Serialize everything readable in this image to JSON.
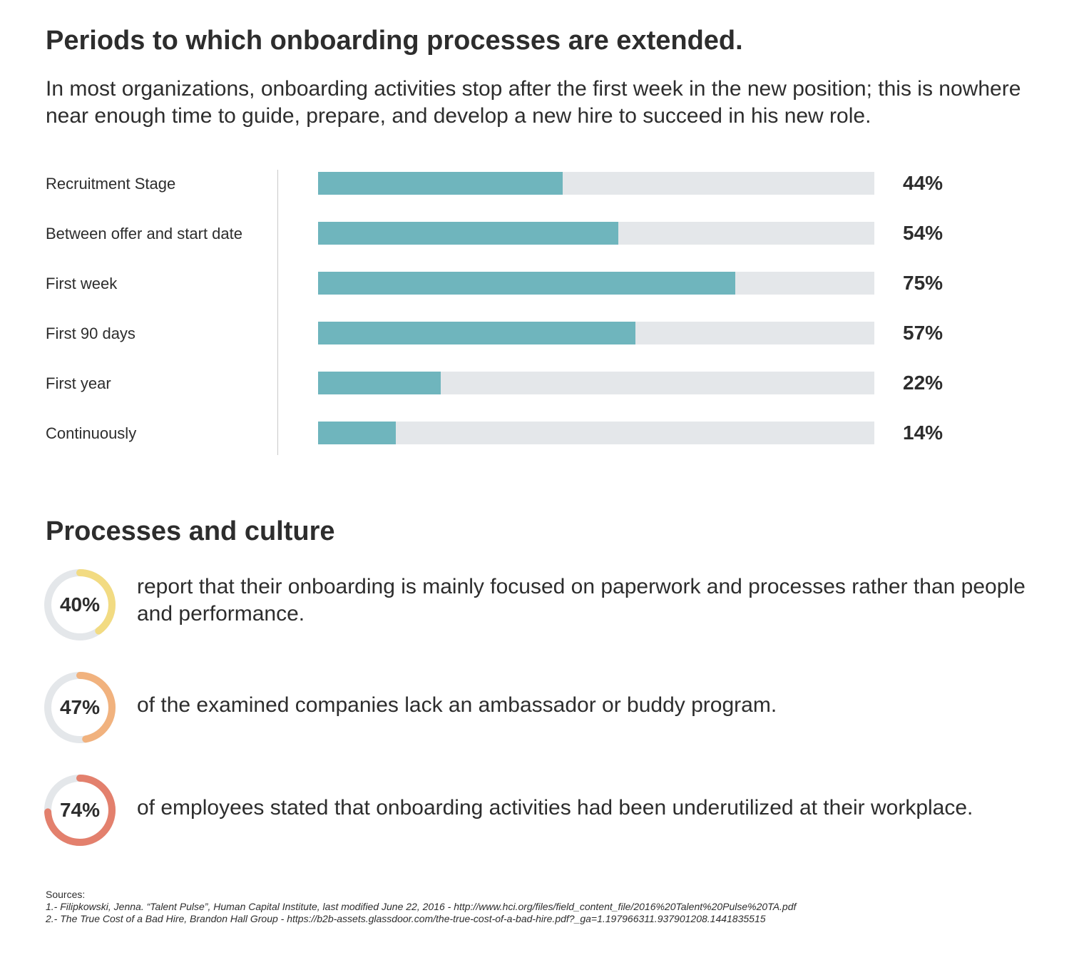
{
  "title": "Periods to which onboarding processes are extended.",
  "subtitle": "In most organizations, onboarding activities stop after the first week in the new position; this is nowhere near enough time to guide, prepare, and develop a new hire to succeed in his new role.",
  "colors": {
    "bar": "#6fb5bd",
    "track": "#e4e7ea",
    "ring_track": "#e4e7ea"
  },
  "chart_data": [
    {
      "type": "bar",
      "orientation": "horizontal",
      "title": "Periods to which onboarding processes are extended.",
      "categories": [
        "Recruitment Stage",
        "Between offer and start date",
        "First week",
        "First 90 days",
        "First year",
        "Continuously"
      ],
      "values": [
        44,
        54,
        75,
        57,
        22,
        14
      ],
      "value_labels": [
        "44%",
        "54%",
        "75%",
        "57%",
        "22%",
        "14%"
      ],
      "xlim": [
        0,
        100
      ],
      "grid": false
    },
    {
      "type": "pie",
      "title": "Processes and culture",
      "style": "donut",
      "items": [
        {
          "value": 40,
          "label": "40%",
          "text": "report that their onboarding is mainly focused on paperwork and processes rather than people and performance.",
          "color": "#f2db82"
        },
        {
          "value": 47,
          "label": "47%",
          "text": "of the examined companies lack an ambassador or buddy program.",
          "color": "#f1b27e"
        },
        {
          "value": 74,
          "label": "74%",
          "text": "of employees stated that onboarding activities had been underutilized at their workplace.",
          "color": "#e3806d"
        }
      ]
    }
  ],
  "section2": {
    "title": "Processes and culture"
  },
  "sources": {
    "heading": "Sources:",
    "lines": [
      "1.- Filipkowski, Jenna. “Talent Pulse”, Human Capital Institute, last modified June 22, 2016 - http://www.hci.org/files/field_content_file/2016%20Talent%20Pulse%20TA.pdf",
      "2.- The True Cost of a Bad Hire, Brandon Hall Group - https://b2b-assets.glassdoor.com/the-true-cost-of-a-bad-hire.pdf?_ga=1.197966311.937901208.1441835515"
    ]
  }
}
